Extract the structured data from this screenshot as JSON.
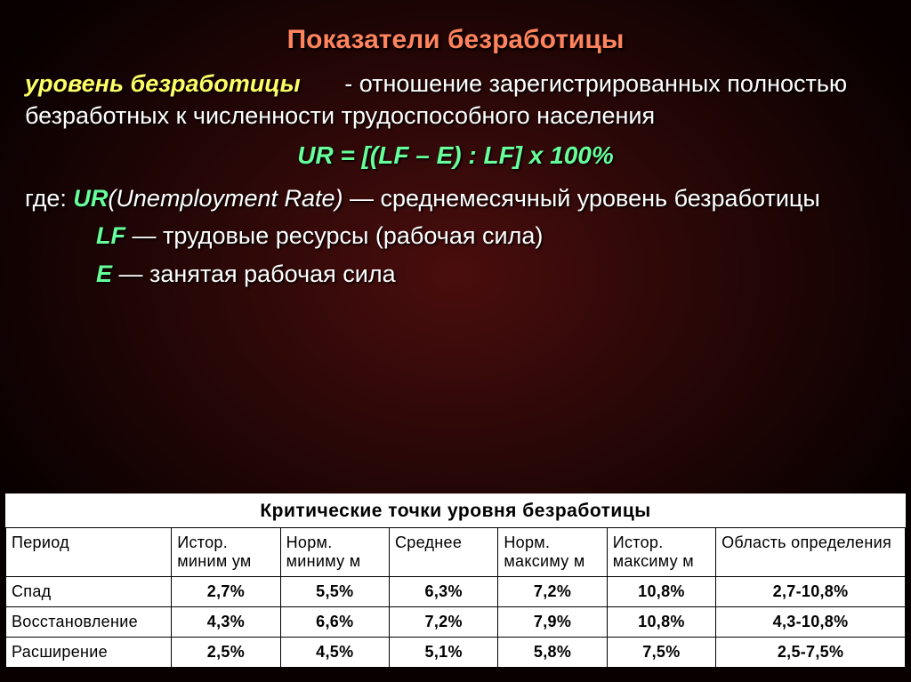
{
  "title": "Показатели безработицы",
  "definition": {
    "term": "уровень безработицы",
    "text_after_term": " - отношение зарегистрированных полностью безработных к численности трудоспособного населения"
  },
  "formula": "UR = [(LF – E) : LF] x 100%",
  "legend": {
    "intro_where": "где: ",
    "ur_sym": "UR",
    "ur_paren": "(Unemployment Rate)",
    "ur_desc": " — среднемесячный уровень безработицы",
    "lf_sym": "LF",
    "lf_desc": " — трудовые ресурсы (рабочая сила)",
    "e_sym": "E",
    "e_desc": " — занятая рабочая сила"
  },
  "table": {
    "title": "Критические точки уровня безработицы",
    "columns": [
      "Период",
      "Истор. миним\nум",
      "Норм. миниму\nм",
      "Среднее",
      "Норм. максиму\nм",
      "Истор. максиму\nм",
      "Область определения"
    ],
    "rows": [
      [
        "Спад",
        "2,7%",
        "5,5%",
        "6,3%",
        "7,2%",
        "10,8%",
        "2,7-10,8%"
      ],
      [
        "Восстановление",
        "4,3%",
        "6,6%",
        "7,2%",
        "7,9%",
        "10,8%",
        "4,3-10,8%"
      ],
      [
        "Расширение",
        "2,5%",
        "4,5%",
        "5,1%",
        "5,8%",
        "7,5%",
        "2,5-7,5%"
      ]
    ],
    "header_bg": "#ffffff",
    "cell_bg": "#ffffff",
    "border_color": "#000000"
  }
}
